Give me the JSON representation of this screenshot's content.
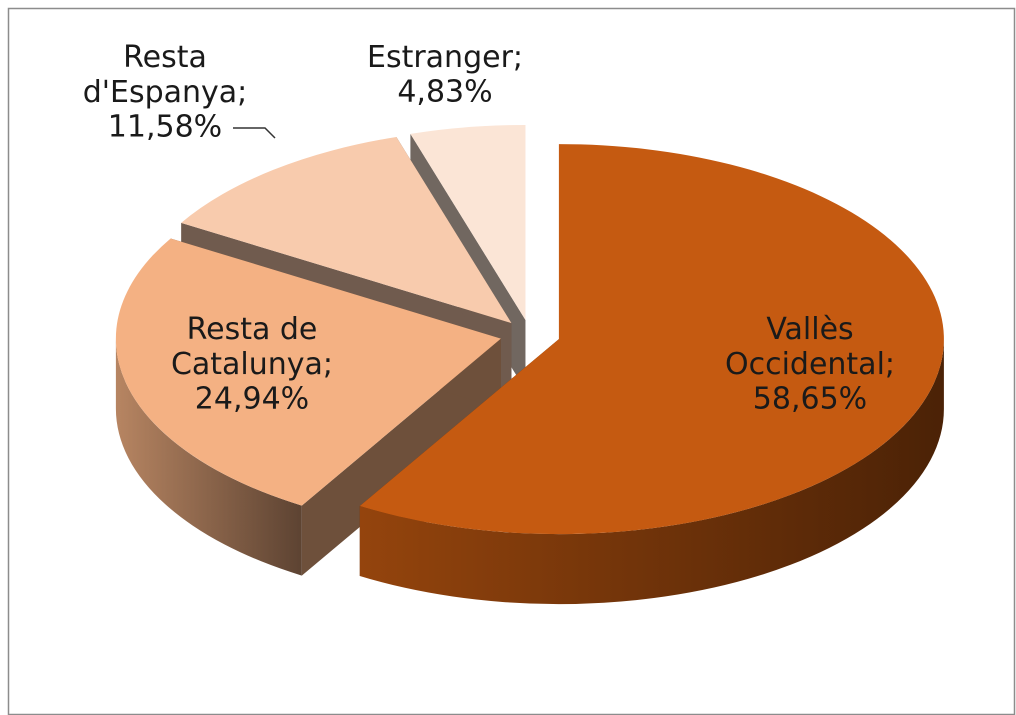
{
  "chart_data": {
    "type": "pie3d",
    "categories": [
      "Vallès Occidental;",
      "Resta de Catalunya;",
      "Resta d'Espanya;",
      "Estranger;"
    ],
    "values": [
      58.65,
      24.94,
      11.58,
      4.83
    ],
    "value_labels": [
      "58,65%",
      "24,94%",
      "11,58%",
      "4,83%"
    ],
    "colors": [
      "#c55a11",
      "#f4b183",
      "#f8cbad",
      "#fbe5d6"
    ]
  }
}
